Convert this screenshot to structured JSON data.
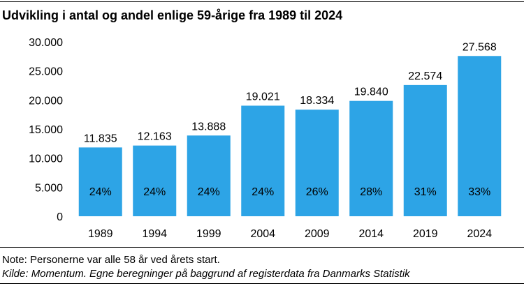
{
  "title": "Udvikling i antal og andel enlige 59-årige fra 1989 til 2024",
  "note": "Note: Personerne var alle 58 år ved årets start.",
  "source": "Kilde: Momentum. Egne beregninger på baggrund af registerdata fra Danmarks Statistik",
  "chart_data": {
    "type": "bar",
    "categories": [
      "1989",
      "1994",
      "1999",
      "2004",
      "2009",
      "2014",
      "2019",
      "2024"
    ],
    "values": [
      11835,
      12163,
      13888,
      19021,
      18334,
      19840,
      22574,
      27568
    ],
    "value_labels": [
      "11.835",
      "12.163",
      "13.888",
      "19.021",
      "18.334",
      "19.840",
      "22.574",
      "27.568"
    ],
    "share_labels": [
      "24%",
      "24%",
      "24%",
      "24%",
      "26%",
      "28%",
      "31%",
      "33%"
    ],
    "yticks": [
      0,
      5000,
      10000,
      15000,
      20000,
      25000,
      30000
    ],
    "ytick_labels": [
      "0",
      "5.000",
      "10.000",
      "15.000",
      "20.000",
      "25.000",
      "30.000"
    ],
    "ylim": [
      0,
      30000
    ],
    "xlabel": "",
    "ylabel": "",
    "grid": false,
    "bar_color": "#2da4e6"
  }
}
